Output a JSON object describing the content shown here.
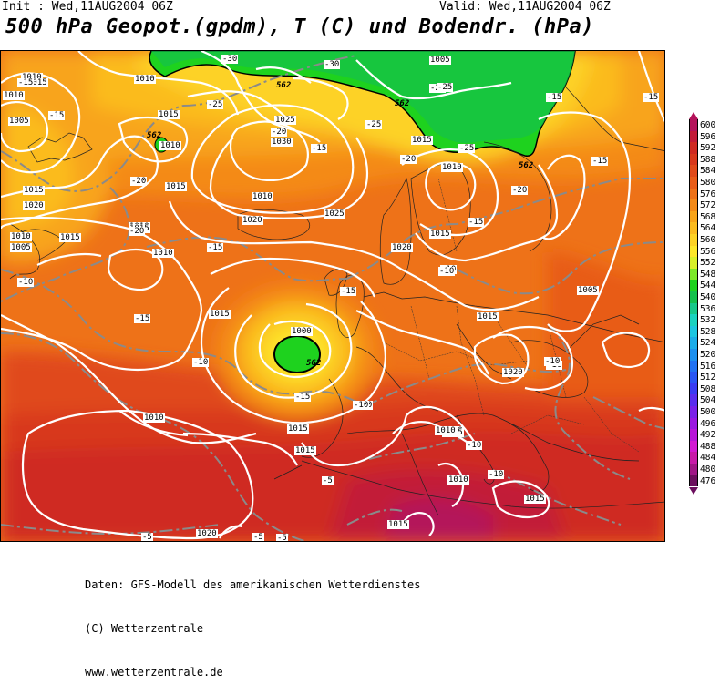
{
  "header": {
    "init_label": "Init : Wed,11AUG2004 06Z",
    "valid_label": "Valid: Wed,11AUG2004 06Z",
    "title": "500 hPa Geopot.(gpdm), T (C) und Bodendr. (hPa)"
  },
  "legend": {
    "entries": [
      {
        "label": "600",
        "color": "#b4135a"
      },
      {
        "label": "596",
        "color": "#c21b38"
      },
      {
        "label": "592",
        "color": "#cf2a22"
      },
      {
        "label": "588",
        "color": "#d8381c"
      },
      {
        "label": "584",
        "color": "#e04a1a"
      },
      {
        "label": "580",
        "color": "#e85c18"
      },
      {
        "label": "576",
        "color": "#ee7218"
      },
      {
        "label": "572",
        "color": "#f48a18"
      },
      {
        "label": "568",
        "color": "#f8a41a"
      },
      {
        "label": "564",
        "color": "#fbbb1f"
      },
      {
        "label": "560",
        "color": "#fdd225"
      },
      {
        "label": "556",
        "color": "#fde72a"
      },
      {
        "label": "552",
        "color": "#d8f02a"
      },
      {
        "label": "548",
        "color": "#7de82a"
      },
      {
        "label": "544",
        "color": "#1ed21e"
      },
      {
        "label": "540",
        "color": "#14c04c"
      },
      {
        "label": "536",
        "color": "#17c889"
      },
      {
        "label": "532",
        "color": "#1ad2bf"
      },
      {
        "label": "528",
        "color": "#1cc6e0"
      },
      {
        "label": "524",
        "color": "#1cace8"
      },
      {
        "label": "520",
        "color": "#1e90ee"
      },
      {
        "label": "516",
        "color": "#2272f2"
      },
      {
        "label": "512",
        "color": "#2a56f4"
      },
      {
        "label": "508",
        "color": "#3a3cf2"
      },
      {
        "label": "504",
        "color": "#5a2eee"
      },
      {
        "label": "500",
        "color": "#7a22e8"
      },
      {
        "label": "496",
        "color": "#9a18e0"
      },
      {
        "label": "492",
        "color": "#b816d8"
      },
      {
        "label": "488",
        "color": "#d21ad2"
      },
      {
        "label": "484",
        "color": "#c81aa8"
      },
      {
        "label": "480",
        "color": "#a01686"
      },
      {
        "label": "476",
        "color": "#6c0f5e"
      }
    ]
  },
  "map": {
    "geopotential_labels": [
      "562",
      "562",
      "562",
      "562",
      "562"
    ],
    "pressure_labels": [
      "1010",
      "1015",
      "1010",
      "1005",
      "1015",
      "1010",
      "1010",
      "1015",
      "1020",
      "1010",
      "1005",
      "1010",
      "1015",
      "1030",
      "1025",
      "1010",
      "1015",
      "1015",
      "1005",
      "1015",
      "1020",
      "1025",
      "1020",
      "1010",
      "1015",
      "1010",
      "1005",
      "1000",
      "1015",
      "1015",
      "1020",
      "1010",
      "1015",
      "1015",
      "1010",
      "1015",
      "1010",
      "1015",
      "1020",
      "1015",
      "1010"
    ],
    "temperature_labels": [
      "-15",
      "-15",
      "-30",
      "-20",
      "-25",
      "-25",
      "-20",
      "-15",
      "-20",
      "-30",
      "-25",
      "-25",
      "-25",
      "-20",
      "-15",
      "-20",
      "-15",
      "-15",
      "-10",
      "-15",
      "-15",
      "-10",
      "-15",
      "-10",
      "-10",
      "-10",
      "-15",
      "-15",
      "-10",
      "-10",
      "-10",
      "-5",
      "-5",
      "-5",
      "-5",
      "-10",
      "-10"
    ]
  },
  "credits": {
    "line1": "Daten: GFS-Modell des amerikanischen Wetterdienstes",
    "line2": "(C) Wetterzentrale",
    "line3": "www.wetterzentrale.de"
  }
}
